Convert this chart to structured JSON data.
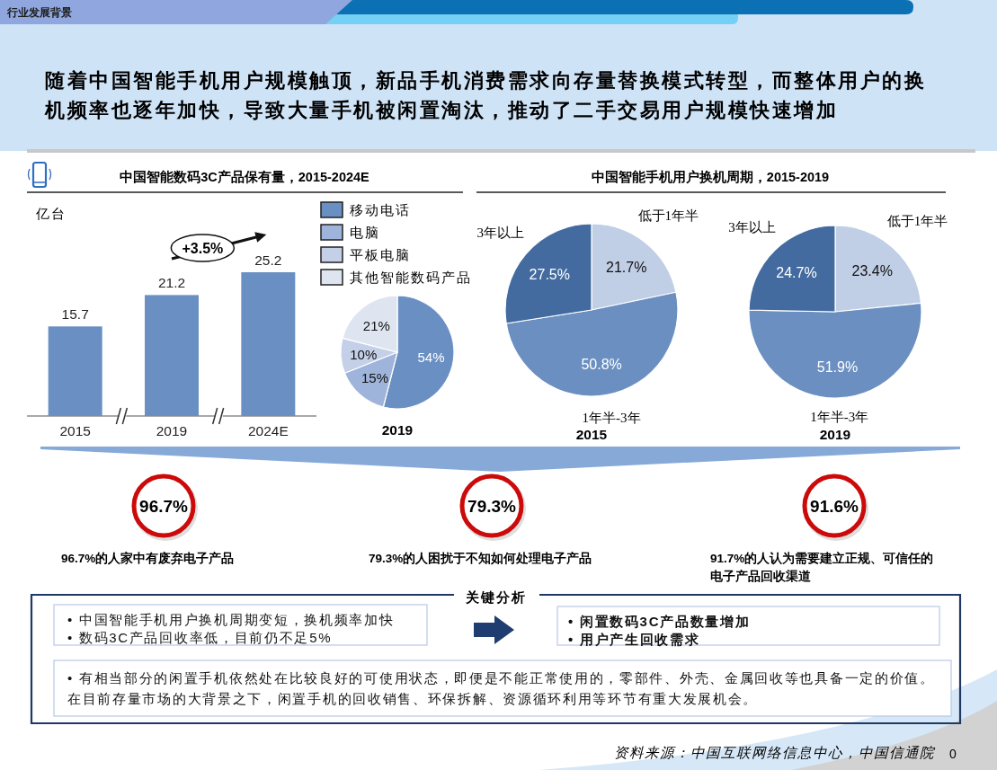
{
  "chart_data": [
    {
      "type": "other",
      "title": "随着中国智能手机用户规模触顶，新品手机消费需求向存量替换模式转型，而整体用户的换机频率也逐年加快，导致大量手机被闲置淘汰，推动了二手交易用户规模快速增加",
      "annotations": [
        "行业发展背景"
      ]
    },
    {
      "type": "bar",
      "title": "中国智能数码3C产品保有量，2015-2024E",
      "ylabel": "亿台",
      "categories": [
        "2015",
        "2019",
        "2024E"
      ],
      "values": [
        15.7,
        21.2,
        25.2
      ],
      "color": "#6a8fc2",
      "data_labels": true,
      "annotations": [
        "+3.5%"
      ]
    },
    {
      "type": "pie",
      "xlabel": "2019",
      "categories": [
        "移动电话",
        "电脑",
        "平板电脑",
        "其他智能数码产品"
      ],
      "values": [
        54,
        15,
        10,
        21
      ],
      "value_labels": [
        "54%",
        "15%",
        "10%",
        "21%"
      ],
      "colors": [
        "#6a8fc2",
        "#9fb4da",
        "#c3d0e8",
        "#dfe5f0"
      ],
      "legend": "top"
    },
    {
      "type": "pie",
      "title": "中国智能手机用户换机周期，2015-2019",
      "xlabel": "2015",
      "categories": [
        "低于1年半",
        "1年半-3年",
        "3年以上"
      ],
      "values": [
        21.7,
        50.8,
        27.5
      ],
      "value_labels": [
        "21.7%",
        "50.8%",
        "27.5%"
      ],
      "colors": [
        "#c0cee6",
        "#6a8fc0",
        "#436b9f"
      ]
    },
    {
      "type": "pie",
      "xlabel": "2019",
      "categories": [
        "低于1年半",
        "1年半-3年",
        "3年以上"
      ],
      "values": [
        23.4,
        51.9,
        24.7
      ],
      "value_labels": [
        "23.4%",
        "51.9%",
        "24.7%"
      ],
      "colors": [
        "#c0cee6",
        "#6a8fc0",
        "#436b9f"
      ]
    },
    {
      "type": "other",
      "annotations": [
        "96.7%",
        "96.7%的人家中有废弃电子产品",
        "79.3%",
        "79.3%的人困扰于不知如何处理电子产品",
        "91.6%",
        "91.7%的人认为需要建立正规、可信任的电子产品回收渠道"
      ]
    },
    {
      "type": "other",
      "title": "关键分析",
      "annotations": [
        "• 中国智能手机用户换机周期变短，换机频率加快",
        "• 数码3C产品回收率低，目前仍不足5%",
        "• 闲置数码3C产品数量增加",
        "• 用户产生回收需求",
        "• 有相当部分的闲置手机依然处在比较良好的可使用状态，即便是不能正常使用的，零部件、外壳、金属回收等也具备一定的价值。在目前存量市场的大背景之下，闲置手机的回收销售、环保拆解、资源循环利用等环节有重大发展机会。"
      ]
    },
    {
      "type": "other",
      "annotations": [
        "资料来源：中国互联网络信息中心，中国信通院",
        "0"
      ]
    }
  ]
}
